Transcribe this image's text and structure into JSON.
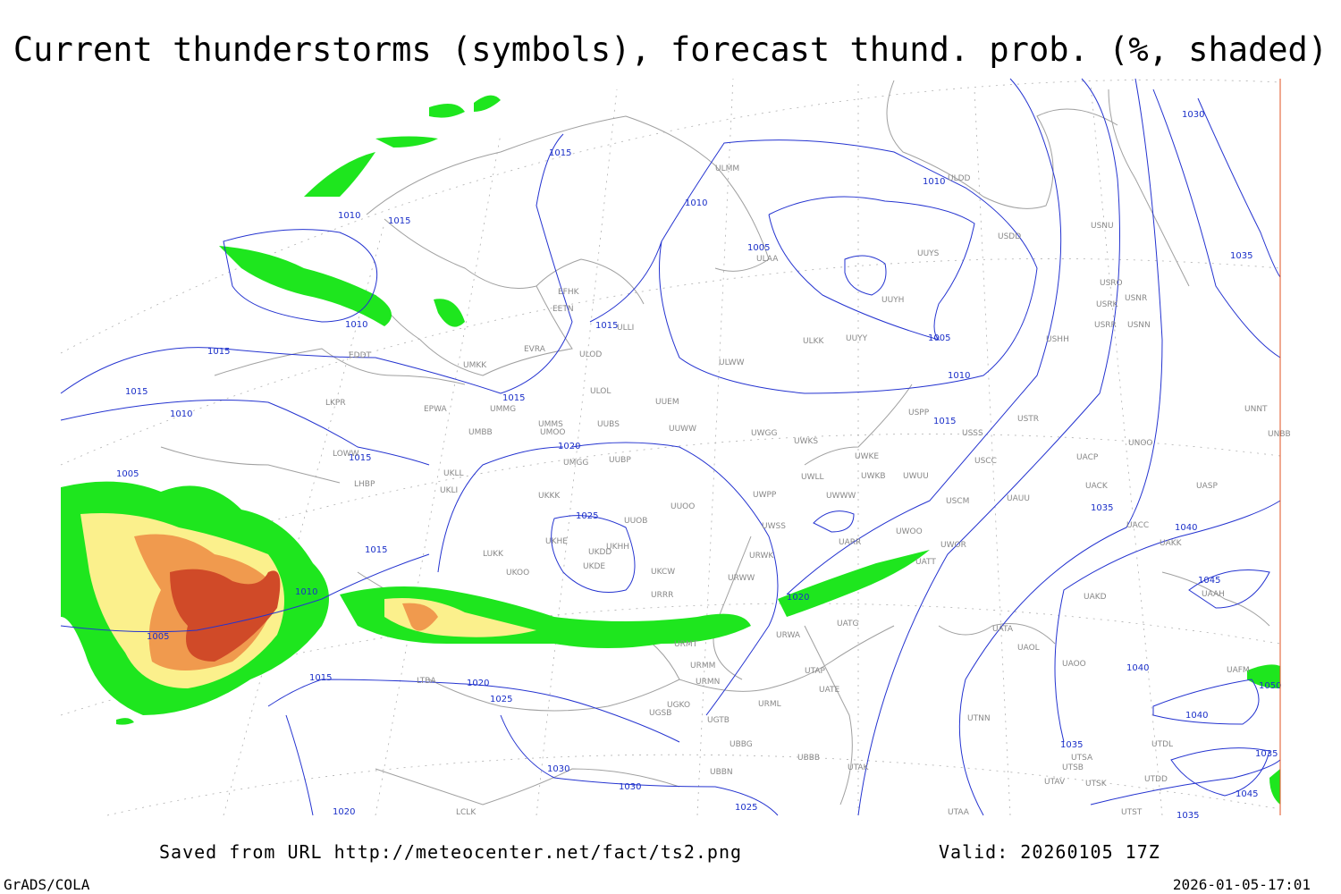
{
  "title": "Current thunderstorms (symbols), forecast thund. prob. (%, shaded)",
  "footer": {
    "source": "Saved from URL http://meteocenter.net/fact/ts2.png",
    "valid": "Valid: 20260105 17Z",
    "software": "GrADS/COLA",
    "timestamp": "2026-01-05-17:01"
  },
  "isobar_labels": [
    1015,
    1010,
    1015,
    1010,
    1010,
    1005,
    1030,
    1035,
    1015,
    1010,
    1015,
    1015,
    1015,
    1005,
    1010,
    1010,
    1015,
    1015,
    1005,
    1020,
    1025,
    1035,
    1040,
    1015,
    1010,
    1020,
    1045,
    1005,
    1040,
    1015,
    1020,
    1025,
    1030,
    1030,
    1035,
    1040,
    1035,
    1045,
    1020,
    1025,
    1035,
    1050
  ],
  "stations": [
    "ULMM",
    "ULDD",
    "USDD",
    "USNU",
    "UUYS",
    "ULAA",
    "EFHK",
    "EETN",
    "ULLI",
    "UUYH",
    "USRO",
    "USRK",
    "USNR",
    "USRR",
    "USNN",
    "ULKK",
    "UUYY",
    "USHH",
    "EVRA",
    "ULOD",
    "EDDT",
    "UMKK",
    "ULWW",
    "UUEM",
    "ULOL",
    "LKPR",
    "EPWA",
    "UMMG",
    "USPP",
    "USTR",
    "UNNT",
    "UMMS",
    "UUBS",
    "UUWW",
    "UMOO",
    "UMBB",
    "UWGG",
    "USSS",
    "UWKS",
    "UNOO",
    "UNBB",
    "LOWW",
    "UMGG",
    "UUBP",
    "UWKE",
    "USCC",
    "UACP",
    "UKLL",
    "UWKB",
    "UWUU",
    "UWLL",
    "UACK",
    "UASP",
    "LHBP",
    "UKLI",
    "UKKK",
    "UWPP",
    "UWWW",
    "USCM",
    "UAUU",
    "UUOO",
    "UUOB",
    "UACC",
    "UKHE",
    "UKDD",
    "UKHH",
    "UWSS",
    "UARR",
    "UWOO",
    "UAKK",
    "LUKK",
    "UKDE",
    "URWK",
    "UWOR",
    "UATT",
    "UKOO",
    "UKCW",
    "URWW",
    "UAKD",
    "UAAH",
    "URRR",
    "UATG",
    "UATA",
    "URWA",
    "URMT",
    "UAOL",
    "UAOO",
    "UAFM",
    "URMM",
    "UTAP",
    "LTBA",
    "URMN",
    "UATE",
    "UGKO",
    "URML",
    "UGSB",
    "UGTB",
    "UTNN",
    "UTDL",
    "UBBG",
    "UBBB",
    "UTSA",
    "UTSB",
    "UTAK",
    "UBBN",
    "UTAV",
    "UTSK",
    "UTDD",
    "LCLK",
    "UTAA",
    "UTST"
  ]
}
